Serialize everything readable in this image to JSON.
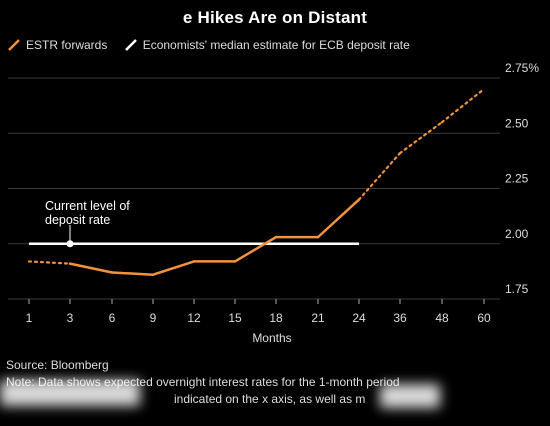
{
  "title": "e Hikes Are on Distant",
  "legend": [
    {
      "label": "ESTR forwards",
      "color": "#f2933a",
      "marker": "orange-line"
    },
    {
      "label": "Economists' median estimate for ECB deposit rate",
      "color": "#ffffff",
      "marker": "white-line"
    }
  ],
  "annotation": {
    "line1": "Current level of",
    "line2": "deposit rate"
  },
  "source": "Source: Bloomberg",
  "note_line1": "Note: Data shows expected overnight interest rates for the 1-month period",
  "note_line2": "indicated on the x axis, as well as m",
  "chart_data": {
    "type": "line",
    "title": "e Hikes Are on Distant",
    "xlabel": "Months",
    "ylabel": "",
    "categories": [
      "1",
      "3",
      "6",
      "9",
      "12",
      "15",
      "18",
      "21",
      "24",
      "36",
      "48",
      "60"
    ],
    "ylim": [
      1.75,
      2.75
    ],
    "yticks": [
      "1.75",
      "2.00",
      "2.25",
      "2.50",
      "2.75%"
    ],
    "ytick_values": [
      1.75,
      2.0,
      2.25,
      2.5,
      2.75
    ],
    "grid": true,
    "series": [
      {
        "name": "ESTR forwards",
        "color": "#f2933a",
        "x": [
          1,
          3,
          6,
          9,
          12,
          15,
          18,
          21,
          24,
          36,
          48,
          60
        ],
        "values": [
          1.92,
          1.91,
          1.87,
          1.86,
          1.92,
          1.92,
          2.03,
          2.03,
          2.2,
          2.41,
          2.55,
          2.7
        ],
        "dotted_segments": [
          [
            0,
            1
          ],
          [
            8,
            11
          ]
        ]
      },
      {
        "name": "Economists' median estimate for ECB deposit rate",
        "color": "#ffffff",
        "x": [
          1,
          24
        ],
        "values": [
          2.0,
          2.0
        ],
        "marker_at_x": 3
      }
    ]
  }
}
